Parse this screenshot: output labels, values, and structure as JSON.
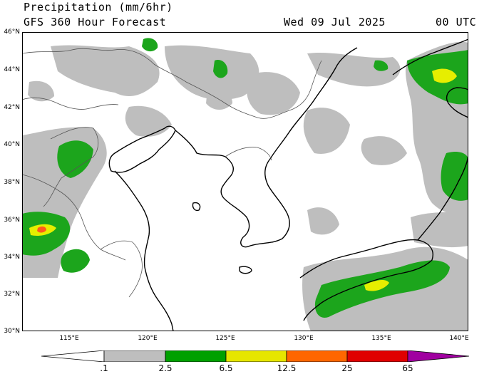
{
  "header": {
    "title": "Precipitation (mm/6hr)",
    "subtitle": "GFS 360 Hour Forecast",
    "date": "Wed 09 Jul 2025",
    "time": "00 UTC"
  },
  "lat_labels": [
    "46°N",
    "44°N",
    "42°N",
    "40°N",
    "38°N",
    "36°N",
    "34°N",
    "32°N",
    "30°N"
  ],
  "lon_labels": [
    "115°E",
    "120°E",
    "125°E",
    "130°E",
    "135°E",
    "140°E"
  ],
  "legend": {
    "labels": [
      ".1",
      "2.5",
      "6.5",
      "12.5",
      "25",
      "65"
    ],
    "colors": {
      "trace": "#ffffff",
      "light": "#bebebe",
      "moderate": "#00a000",
      "heavy": "#e6e600",
      "very_heavy": "#ff6600",
      "extreme": "#e00000",
      "max": "#a000a0"
    }
  },
  "colors": {
    "light_precip": "#bebebe",
    "moderate_precip": "#1ca51c",
    "heavy_precip": "#e6ee00",
    "very_heavy_precip": "#ff5a1e",
    "coastline": "#000000",
    "border": "#666666"
  }
}
